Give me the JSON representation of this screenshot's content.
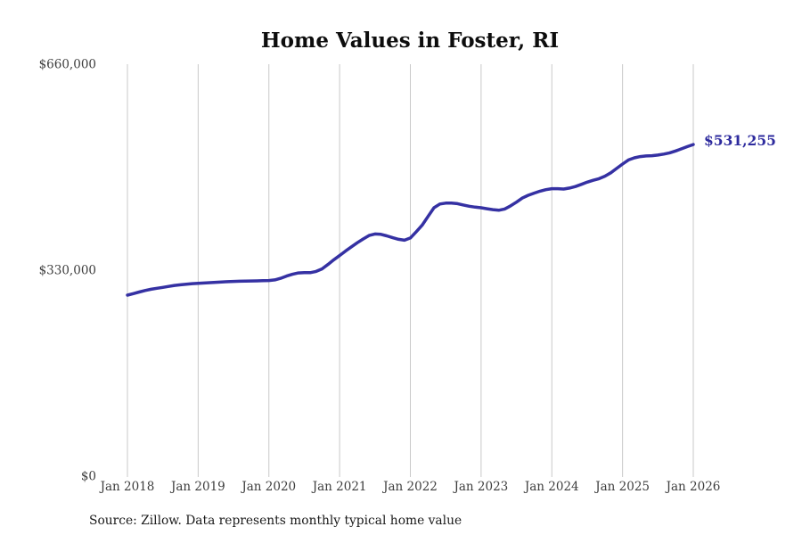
{
  "title": "Home Values in Foster, RI",
  "source_note": "Source: Zillow. Data represents monthly typical home value",
  "chart_data": {
    "type": "line",
    "series_name": "Monthly typical home value",
    "title": "Home Values in Foster, RI",
    "x_start_label": "Jan 2018",
    "x_end_label": "Jan 2026",
    "x_tick_labels": [
      "Jan 2018",
      "Jan 2019",
      "Jan 2020",
      "Jan 2021",
      "Jan 2022",
      "Jan 2023",
      "Jan 2024",
      "Jan 2025",
      "Jan 2026"
    ],
    "x_tick_month_indices": [
      0,
      12,
      24,
      36,
      48,
      60,
      72,
      84,
      96
    ],
    "y_ticks": [
      {
        "value": 0,
        "label": "$0"
      },
      {
        "value": 330000,
        "label": "$330,000"
      },
      {
        "value": 660000,
        "label": "$660,000"
      }
    ],
    "ylim": [
      0,
      660000
    ],
    "grid": "vertical-only",
    "legend": "none",
    "end_label": "$531,255",
    "end_value": 531255,
    "line_color": "#3531a3",
    "annotation_color": "#2e2b9e",
    "grid_color": "#c9c9c9",
    "monthly_values": [
      290000,
      292500,
      295000,
      297500,
      299500,
      301000,
      302500,
      304000,
      305500,
      306500,
      307500,
      308500,
      309000,
      309500,
      310000,
      310500,
      311000,
      311500,
      312000,
      312300,
      312500,
      312700,
      312900,
      313200,
      313500,
      314500,
      317000,
      320500,
      323500,
      325500,
      326000,
      326000,
      328000,
      332000,
      339000,
      346500,
      353500,
      360500,
      367500,
      374000,
      380000,
      385500,
      388000,
      387500,
      385000,
      382000,
      379500,
      378000,
      381500,
      391500,
      402000,
      416000,
      430000,
      436000,
      437500,
      437500,
      436500,
      434500,
      432500,
      431000,
      430000,
      428500,
      427000,
      426000,
      428000,
      433000,
      439000,
      445500,
      450000,
      453500,
      456500,
      459000,
      460500,
      460500,
      460000,
      461500,
      464000,
      467500,
      471000,
      474000,
      476500,
      480500,
      486000,
      493000,
      500000,
      506500,
      510000,
      512000,
      513000,
      513500,
      514500,
      516000,
      518000,
      521000,
      524500,
      528000,
      531255
    ]
  }
}
